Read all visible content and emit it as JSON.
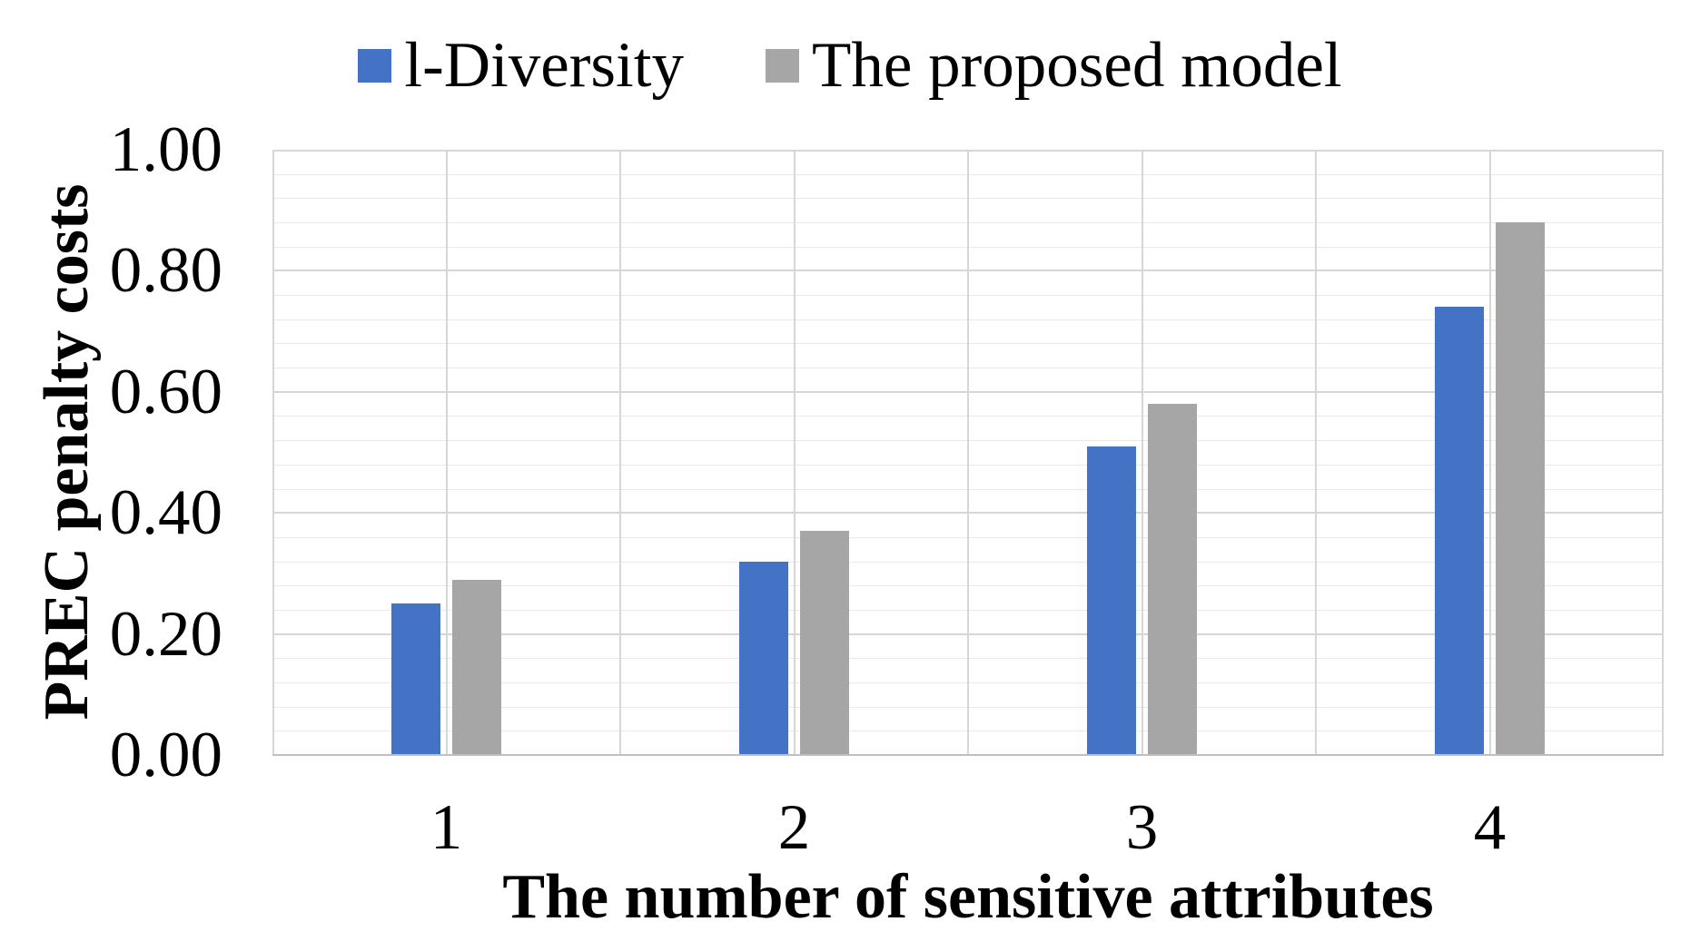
{
  "chart_data": {
    "type": "bar",
    "title": "",
    "categories": [
      "1",
      "2",
      "3",
      "4"
    ],
    "series": [
      {
        "name": "l-Diversity",
        "color": "#4472C4",
        "values": [
          0.25,
          0.32,
          0.51,
          0.74
        ]
      },
      {
        "name": "The proposed model",
        "color": "#A6A6A6",
        "values": [
          0.29,
          0.37,
          0.58,
          0.88
        ]
      }
    ],
    "xlabel": "The number of sensitive attributes",
    "ylabel": "PREC penalty costs",
    "ylim": [
      0,
      1
    ],
    "yticks": [
      "0.00",
      "0.20",
      "0.40",
      "0.60",
      "0.80",
      "1.00"
    ],
    "y_major_step": 0.2,
    "y_minor_step": 0.04,
    "grid": "horizontal major+minor, vertical half-category lines",
    "legend_position": "top-center",
    "colors": {
      "background": "#FFFFFF",
      "text": "#000000",
      "major_grid": "#D6D6D6",
      "minor_grid": "#EAEAEA",
      "axis_line": "#BFBFBF"
    }
  }
}
